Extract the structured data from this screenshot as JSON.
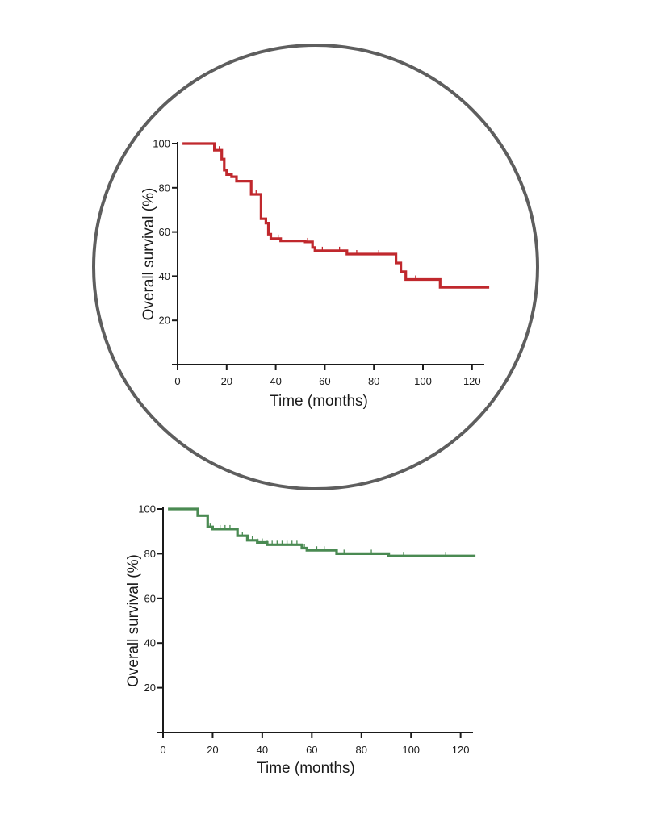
{
  "chart_data": [
    {
      "type": "line",
      "step": true,
      "xlabel": "Time (months)",
      "ylabel": "Overall survival (%)",
      "xlim": [
        0,
        125
      ],
      "ylim": [
        0,
        100
      ],
      "x_ticks": [
        0,
        20,
        40,
        60,
        80,
        100,
        120
      ],
      "y_ticks": [
        20,
        40,
        60,
        80,
        100
      ],
      "grid": false,
      "framed_by_circle": true,
      "color": "#c0282d",
      "series": [
        {
          "x": [
            2,
            15,
            15,
            18,
            18,
            19,
            19,
            20,
            20,
            22,
            22,
            24,
            24,
            30,
            30,
            34,
            34,
            36,
            36,
            37,
            37,
            38,
            38,
            42,
            42,
            52,
            52,
            55,
            55,
            56,
            56,
            69,
            69,
            89,
            89,
            91,
            91,
            93,
            93,
            107,
            107,
            127
          ],
          "y": [
            100,
            100,
            97,
            97,
            93,
            93,
            88,
            88,
            86,
            86,
            85,
            85,
            83,
            83,
            77,
            77,
            66,
            66,
            64,
            64,
            59,
            59,
            57,
            57,
            56,
            56,
            55.5,
            55.5,
            53,
            53,
            51.5,
            51.5,
            50,
            50,
            46,
            46,
            42,
            42,
            38.5,
            38.5,
            35,
            35
          ]
        }
      ],
      "censor_marks_x": [
        17,
        32,
        36,
        41,
        53,
        59,
        66,
        73,
        82,
        97
      ]
    },
    {
      "type": "line",
      "step": true,
      "xlabel": "Time (months)",
      "ylabel": "Overall survival (%)",
      "xlim": [
        0,
        125
      ],
      "ylim": [
        0,
        100
      ],
      "x_ticks": [
        0,
        20,
        40,
        60,
        80,
        100,
        120
      ],
      "y_ticks": [
        20,
        40,
        60,
        80,
        100
      ],
      "grid": false,
      "framed_by_circle": false,
      "color": "#4a8a52",
      "series": [
        {
          "x": [
            2,
            14,
            14,
            18,
            18,
            20,
            20,
            30,
            30,
            34,
            34,
            38,
            38,
            42,
            42,
            56,
            56,
            58,
            58,
            70,
            70,
            91,
            91,
            126
          ],
          "y": [
            100,
            100,
            97,
            97,
            92,
            92,
            91,
            91,
            88,
            88,
            86,
            86,
            85,
            85,
            84,
            84,
            82.5,
            82.5,
            81.5,
            81.5,
            80,
            80,
            79,
            79
          ]
        }
      ],
      "censor_marks_x": [
        19,
        23,
        25,
        27,
        32,
        34,
        36,
        38,
        40,
        42,
        44,
        46,
        48,
        50,
        52,
        54,
        57,
        62,
        65,
        73,
        84,
        97,
        114
      ]
    }
  ]
}
